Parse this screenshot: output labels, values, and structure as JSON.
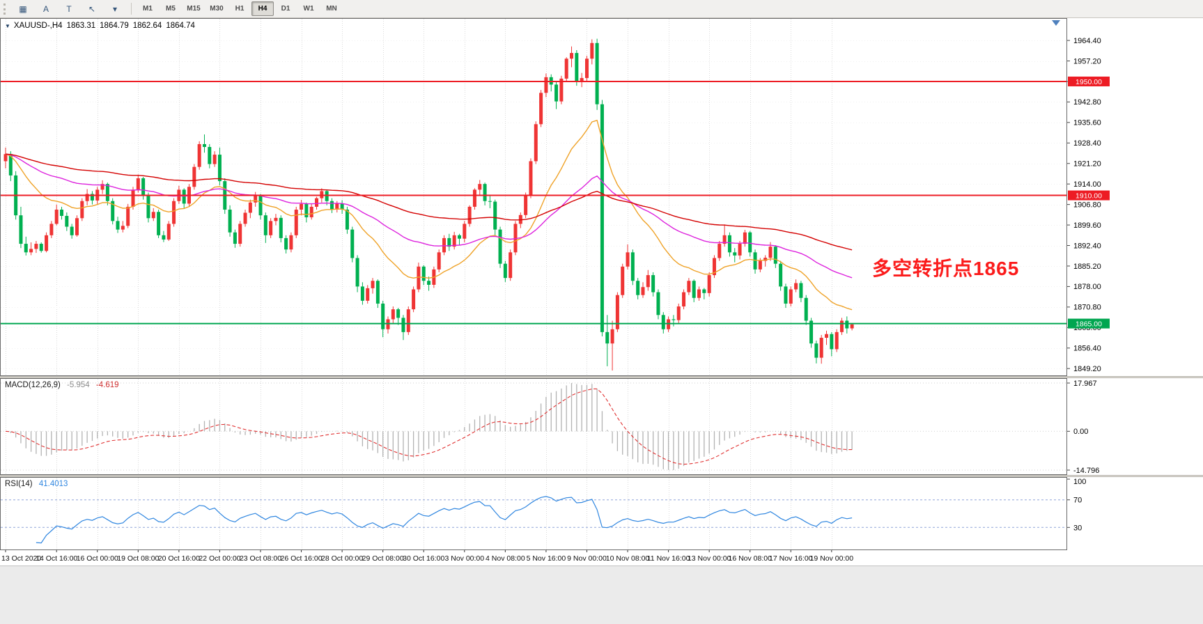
{
  "toolbar": {
    "tools": [
      {
        "name": "chart-grid-icon",
        "glyph": "▦"
      },
      {
        "name": "text-label-tool",
        "glyph": "A"
      },
      {
        "name": "text-tool",
        "glyph": "T"
      },
      {
        "name": "cursor-tool",
        "glyph": "↖"
      },
      {
        "name": "tools-dropdown-caret",
        "glyph": "▾"
      }
    ],
    "timeframes": [
      "M1",
      "M5",
      "M15",
      "M30",
      "H1",
      "H4",
      "D1",
      "W1",
      "MN"
    ],
    "active_timeframe": "H4"
  },
  "header": {
    "collapse_icon": "▼",
    "symbol_period": "XAUUSD-,H4",
    "open": "1863.31",
    "high": "1864.79",
    "low": "1862.64",
    "close": "1864.74"
  },
  "chart_data": {
    "type": "candlestick",
    "symbol": "XAUUSD",
    "period": "H4",
    "y_range": [
      1846.8,
      1972.0
    ],
    "price_axis_labels": [
      "1964.40",
      "1957.20",
      "1950.00",
      "1942.80",
      "1935.60",
      "1928.40",
      "1921.20",
      "1914.00",
      "1906.80",
      "1899.60",
      "1892.40",
      "1885.20",
      "1878.00",
      "1870.80",
      "1863.60",
      "1856.40",
      "1849.20"
    ],
    "time_labels": [
      {
        "text": "13 Oct 2020",
        "index": 0
      },
      {
        "text": "14 Oct 16:00",
        "index": 10
      },
      {
        "text": "16 Oct 00:00",
        "index": 18
      },
      {
        "text": "19 Oct 08:00",
        "index": 26
      },
      {
        "text": "20 Oct 16:00",
        "index": 34
      },
      {
        "text": "22 Oct 00:00",
        "index": 42
      },
      {
        "text": "23 Oct 08:00",
        "index": 50
      },
      {
        "text": "26 Oct 16:00",
        "index": 58
      },
      {
        "text": "28 Oct 00:00",
        "index": 66
      },
      {
        "text": "29 Oct 08:00",
        "index": 74
      },
      {
        "text": "30 Oct 16:00",
        "index": 82
      },
      {
        "text": "3 Nov 00:00",
        "index": 90
      },
      {
        "text": "4 Nov 08:00",
        "index": 98
      },
      {
        "text": "5 Nov 16:00",
        "index": 106
      },
      {
        "text": "9 Nov 00:00",
        "index": 114
      },
      {
        "text": "10 Nov 08:00",
        "index": 122
      },
      {
        "text": "11 Nov 16:00",
        "index": 130
      },
      {
        "text": "13 Nov 00:00",
        "index": 138
      },
      {
        "text": "16 Nov 08:00",
        "index": 146
      },
      {
        "text": "17 Nov 16:00",
        "index": 154
      },
      {
        "text": "19 Nov 00:00",
        "index": 162
      }
    ],
    "hlines": [
      {
        "price": 1950.0,
        "label": "1950.00",
        "color": "#ed1c24"
      },
      {
        "price": 1910.0,
        "label": "1910.00",
        "color": "#ed1c24"
      },
      {
        "price": 1865.0,
        "label": "1865.00",
        "color": "#00a650"
      }
    ],
    "moving_averages": [
      {
        "period": 21,
        "color": "#efa227"
      },
      {
        "period": 56,
        "color": "#dd22dd"
      },
      {
        "period": 120,
        "color": "#d40000"
      }
    ],
    "colors": {
      "up": "#ef3434",
      "down": "#00b050",
      "grid": "#dadada",
      "histogram": "#b2b2b2",
      "signal": "#e03030",
      "rsi": "#2f86e0",
      "rsi_levels": "#8fa4d8"
    },
    "annotation": {
      "text": "多空转折点1865",
      "color": "#fb1b1b"
    },
    "macd": {
      "name": "MACD(12,26,9)",
      "value_main": "-5.954",
      "value_signal": "-4.619",
      "axis_labels": [
        "17.967",
        "0.00",
        "-14.796"
      ],
      "fast": 12,
      "slow": 26,
      "signal": 9
    },
    "rsi": {
      "name": "RSI(14)",
      "value": "41.4013",
      "axis_labels": [
        "100",
        "70",
        "30"
      ],
      "levels": [
        70,
        30
      ],
      "period": 14
    },
    "ohlc": [
      [
        1922.0,
        1926.8,
        1919.5,
        1924.5
      ],
      [
        1924.5,
        1925.5,
        1915.0,
        1917.0
      ],
      [
        1917.0,
        1918.5,
        1901.5,
        1903.0
      ],
      [
        1903.0,
        1906.0,
        1891.5,
        1893.0
      ],
      [
        1893.0,
        1895.5,
        1888.9,
        1890.0
      ],
      [
        1890.0,
        1893.5,
        1889.0,
        1891.2
      ],
      [
        1891.2,
        1894.0,
        1889.8,
        1893.0
      ],
      [
        1893.0,
        1893.5,
        1889.9,
        1890.5
      ],
      [
        1890.5,
        1897.0,
        1890.0,
        1896.0
      ],
      [
        1896.0,
        1901.0,
        1895.0,
        1900.0
      ],
      [
        1900.0,
        1906.8,
        1899.5,
        1905.0
      ],
      [
        1905.0,
        1906.0,
        1901.5,
        1902.8
      ],
      [
        1902.8,
        1904.0,
        1897.5,
        1899.0
      ],
      [
        1899.0,
        1900.0,
        1894.8,
        1896.0
      ],
      [
        1896.0,
        1903.0,
        1895.5,
        1902.0
      ],
      [
        1902.0,
        1909.0,
        1901.0,
        1908.0
      ],
      [
        1908.0,
        1912.2,
        1906.5,
        1910.5
      ],
      [
        1910.5,
        1911.5,
        1906.8,
        1908.2
      ],
      [
        1908.2,
        1913.0,
        1907.0,
        1912.0
      ],
      [
        1912.0,
        1915.3,
        1910.5,
        1914.0
      ],
      [
        1914.0,
        1914.5,
        1906.5,
        1908.0
      ],
      [
        1908.0,
        1909.0,
        1899.8,
        1901.0
      ],
      [
        1901.0,
        1902.5,
        1896.8,
        1898.0
      ],
      [
        1898.0,
        1901.0,
        1897.0,
        1899.3
      ],
      [
        1899.3,
        1907.0,
        1898.5,
        1906.0
      ],
      [
        1906.0,
        1913.0,
        1905.0,
        1912.0
      ],
      [
        1912.0,
        1917.3,
        1911.0,
        1916.0
      ],
      [
        1916.0,
        1916.5,
        1908.5,
        1910.0
      ],
      [
        1910.0,
        1911.0,
        1900.5,
        1902.0
      ],
      [
        1902.0,
        1905.5,
        1901.0,
        1904.2
      ],
      [
        1904.2,
        1905.0,
        1895.0,
        1896.0
      ],
      [
        1896.0,
        1897.5,
        1893.6,
        1894.5
      ],
      [
        1894.5,
        1901.0,
        1894.0,
        1900.0
      ],
      [
        1900.0,
        1909.0,
        1899.0,
        1908.0
      ],
      [
        1908.0,
        1913.4,
        1907.0,
        1912.0
      ],
      [
        1912.0,
        1912.5,
        1905.5,
        1907.1
      ],
      [
        1907.1,
        1914.0,
        1906.0,
        1913.0
      ],
      [
        1913.0,
        1921.0,
        1912.0,
        1920.0
      ],
      [
        1920.0,
        1929.0,
        1919.0,
        1928.0
      ],
      [
        1928.0,
        1931.4,
        1925.0,
        1927.0
      ],
      [
        1927.0,
        1928.0,
        1919.5,
        1921.0
      ],
      [
        1921.0,
        1925.5,
        1920.0,
        1924.3
      ],
      [
        1924.3,
        1926.8,
        1913.5,
        1915.0
      ],
      [
        1915.0,
        1916.0,
        1903.5,
        1905.0
      ],
      [
        1905.0,
        1906.5,
        1895.5,
        1897.0
      ],
      [
        1897.0,
        1898.0,
        1891.6,
        1893.0
      ],
      [
        1893.0,
        1901.0,
        1892.0,
        1900.0
      ],
      [
        1900.0,
        1905.0,
        1899.0,
        1903.9
      ],
      [
        1903.9,
        1908.5,
        1902.0,
        1907.5
      ],
      [
        1907.5,
        1911.2,
        1906.0,
        1910.0
      ],
      [
        1910.0,
        1910.5,
        1901.5,
        1903.0
      ],
      [
        1903.0,
        1904.0,
        1893.3,
        1896.0
      ],
      [
        1896.0,
        1902.0,
        1895.0,
        1901.0
      ],
      [
        1901.0,
        1903.5,
        1899.5,
        1902.1
      ],
      [
        1902.1,
        1903.0,
        1893.5,
        1895.0
      ],
      [
        1895.0,
        1896.0,
        1889.6,
        1891.0
      ],
      [
        1891.0,
        1897.0,
        1890.0,
        1896.0
      ],
      [
        1896.0,
        1906.0,
        1895.0,
        1905.0
      ],
      [
        1905.0,
        1908.4,
        1903.0,
        1907.0
      ],
      [
        1907.0,
        1907.5,
        1900.5,
        1902.3
      ],
      [
        1902.3,
        1907.0,
        1901.5,
        1906.0
      ],
      [
        1906.0,
        1909.5,
        1905.0,
        1909.0
      ],
      [
        1909.0,
        1912.5,
        1907.5,
        1911.5
      ],
      [
        1911.5,
        1912.0,
        1906.5,
        1908.0
      ],
      [
        1908.0,
        1909.0,
        1903.8,
        1905.0
      ],
      [
        1905.0,
        1908.0,
        1904.0,
        1907.2
      ],
      [
        1907.2,
        1908.3,
        1903.5,
        1905.0
      ],
      [
        1905.0,
        1906.0,
        1896.5,
        1898.0
      ],
      [
        1898.0,
        1899.0,
        1886.5,
        1888.0
      ],
      [
        1888.0,
        1889.0,
        1876.0,
        1878.0
      ],
      [
        1878.0,
        1879.5,
        1871.6,
        1873.0
      ],
      [
        1873.0,
        1878.5,
        1872.0,
        1877.4
      ],
      [
        1877.4,
        1881.0,
        1875.5,
        1880.0
      ],
      [
        1880.0,
        1880.5,
        1870.5,
        1872.0
      ],
      [
        1872.0,
        1873.0,
        1860.2,
        1863.0
      ],
      [
        1863.0,
        1867.5,
        1861.5,
        1866.5
      ],
      [
        1866.5,
        1871.0,
        1865.0,
        1870.0
      ],
      [
        1870.0,
        1870.5,
        1864.5,
        1867.0
      ],
      [
        1867.0,
        1868.0,
        1859.2,
        1862.0
      ],
      [
        1862.0,
        1871.0,
        1861.0,
        1870.0
      ],
      [
        1870.0,
        1878.0,
        1869.0,
        1877.0
      ],
      [
        1877.0,
        1886.4,
        1876.0,
        1885.0
      ],
      [
        1885.0,
        1885.5,
        1878.5,
        1880.0
      ],
      [
        1880.0,
        1881.5,
        1876.5,
        1878.6
      ],
      [
        1878.6,
        1885.0,
        1877.5,
        1884.0
      ],
      [
        1884.0,
        1891.0,
        1883.0,
        1890.0
      ],
      [
        1890.0,
        1896.0,
        1889.0,
        1895.0
      ],
      [
        1895.0,
        1896.5,
        1890.5,
        1892.0
      ],
      [
        1892.0,
        1897.2,
        1891.0,
        1896.0
      ],
      [
        1896.0,
        1896.5,
        1892.5,
        1894.8
      ],
      [
        1894.8,
        1901.0,
        1893.5,
        1900.0
      ],
      [
        1900.0,
        1906.5,
        1899.0,
        1906.0
      ],
      [
        1906.0,
        1912.5,
        1905.0,
        1912.0
      ],
      [
        1912.0,
        1915.4,
        1910.0,
        1914.0
      ],
      [
        1914.0,
        1914.5,
        1906.5,
        1908.0
      ],
      [
        1908.0,
        1910.0,
        1905.5,
        1907.8
      ],
      [
        1907.8,
        1908.5,
        1896.0,
        1898.0
      ],
      [
        1898.0,
        1899.0,
        1884.5,
        1886.0
      ],
      [
        1886.0,
        1887.0,
        1879.6,
        1881.0
      ],
      [
        1881.0,
        1891.0,
        1880.0,
        1890.0
      ],
      [
        1890.0,
        1901.0,
        1889.0,
        1900.0
      ],
      [
        1900.0,
        1904.0,
        1898.5,
        1903.1
      ],
      [
        1903.1,
        1911.0,
        1902.0,
        1910.0
      ],
      [
        1910.0,
        1923.0,
        1909.0,
        1922.0
      ],
      [
        1922.0,
        1936.0,
        1921.0,
        1935.0
      ],
      [
        1935.0,
        1947.0,
        1934.0,
        1946.0
      ],
      [
        1946.0,
        1952.8,
        1944.5,
        1951.5
      ],
      [
        1951.5,
        1952.5,
        1946.5,
        1948.9
      ],
      [
        1948.9,
        1950.0,
        1940.3,
        1943.0
      ],
      [
        1943.0,
        1952.0,
        1942.0,
        1951.0
      ],
      [
        1951.0,
        1958.5,
        1950.0,
        1958.0
      ],
      [
        1958.0,
        1962.3,
        1955.0,
        1960.0
      ],
      [
        1960.0,
        1961.0,
        1948.5,
        1950.0
      ],
      [
        1950.0,
        1953.0,
        1948.0,
        1951.2
      ],
      [
        1951.2,
        1959.0,
        1950.0,
        1958.0
      ],
      [
        1958.0,
        1964.8,
        1956.0,
        1963.5
      ],
      [
        1963.5,
        1965.0,
        1940.0,
        1942.0
      ],
      [
        1942.0,
        1943.5,
        1860.5,
        1862.0
      ],
      [
        1862.0,
        1868.0,
        1850.0,
        1858.0
      ],
      [
        1858.0,
        1866.0,
        1848.5,
        1863.0
      ],
      [
        1863.0,
        1876.0,
        1862.0,
        1875.0
      ],
      [
        1875.0,
        1886.0,
        1874.0,
        1885.0
      ],
      [
        1885.0,
        1892.8,
        1884.0,
        1890.0
      ],
      [
        1890.0,
        1891.0,
        1878.5,
        1880.0
      ],
      [
        1880.0,
        1881.0,
        1873.5,
        1875.0
      ],
      [
        1875.0,
        1879.5,
        1874.0,
        1877.8
      ],
      [
        1877.8,
        1883.8,
        1876.5,
        1882.0
      ],
      [
        1882.0,
        1883.0,
        1874.5,
        1876.0
      ],
      [
        1876.0,
        1877.0,
        1866.5,
        1868.0
      ],
      [
        1868.0,
        1869.0,
        1861.5,
        1863.0
      ],
      [
        1863.0,
        1867.5,
        1862.0,
        1866.5
      ],
      [
        1866.5,
        1868.0,
        1864.0,
        1866.2
      ],
      [
        1866.2,
        1872.0,
        1865.0,
        1871.0
      ],
      [
        1871.0,
        1877.0,
        1870.0,
        1876.0
      ],
      [
        1876.0,
        1881.0,
        1875.0,
        1880.0
      ],
      [
        1880.0,
        1880.5,
        1872.5,
        1874.0
      ],
      [
        1874.0,
        1878.0,
        1873.0,
        1877.0
      ],
      [
        1877.0,
        1877.5,
        1873.5,
        1875.7
      ],
      [
        1875.7,
        1883.0,
        1874.5,
        1882.0
      ],
      [
        1882.0,
        1889.0,
        1881.0,
        1888.0
      ],
      [
        1888.0,
        1894.0,
        1887.0,
        1893.0
      ],
      [
        1893.0,
        1899.8,
        1892.0,
        1896.0
      ],
      [
        1896.0,
        1897.0,
        1888.5,
        1890.0
      ],
      [
        1890.0,
        1891.5,
        1886.5,
        1888.9
      ],
      [
        1888.9,
        1894.0,
        1887.5,
        1893.0
      ],
      [
        1893.0,
        1897.9,
        1892.0,
        1897.0
      ],
      [
        1897.0,
        1897.5,
        1888.5,
        1890.0
      ],
      [
        1890.0,
        1891.0,
        1882.5,
        1884.0
      ],
      [
        1884.0,
        1888.0,
        1883.0,
        1887.0
      ],
      [
        1887.0,
        1889.0,
        1885.0,
        1888.1
      ],
      [
        1888.1,
        1893.6,
        1887.0,
        1892.0
      ],
      [
        1892.0,
        1892.5,
        1884.5,
        1886.0
      ],
      [
        1886.0,
        1887.0,
        1876.5,
        1878.0
      ],
      [
        1878.0,
        1879.0,
        1870.5,
        1872.0
      ],
      [
        1872.0,
        1878.0,
        1871.0,
        1877.0
      ],
      [
        1877.0,
        1880.5,
        1876.0,
        1879.2
      ],
      [
        1879.2,
        1880.0,
        1872.5,
        1874.0
      ],
      [
        1874.0,
        1875.0,
        1864.5,
        1866.0
      ],
      [
        1866.0,
        1867.0,
        1856.5,
        1858.0
      ],
      [
        1858.0,
        1859.0,
        1851.0,
        1853.0
      ],
      [
        1853.0,
        1861.0,
        1850.9,
        1860.0
      ],
      [
        1860.0,
        1862.5,
        1857.5,
        1861.3
      ],
      [
        1861.3,
        1862.0,
        1853.5,
        1856.0
      ],
      [
        1856.0,
        1863.0,
        1855.0,
        1862.0
      ],
      [
        1862.0,
        1867.0,
        1861.0,
        1866.0
      ],
      [
        1866.0,
        1867.5,
        1861.5,
        1863.3
      ],
      [
        1863.3,
        1864.8,
        1862.6,
        1864.7
      ]
    ]
  }
}
